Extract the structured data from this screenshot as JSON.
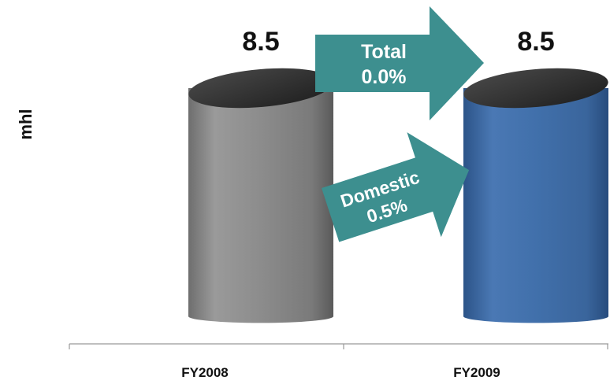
{
  "chart_data": {
    "type": "bar",
    "title": "",
    "xlabel": "",
    "ylabel": "mhl",
    "categories": [
      "FY2008",
      "FY2009"
    ],
    "values": [
      8.5,
      8.5
    ],
    "value_labels": [
      "8.5",
      "8.5"
    ],
    "ylim": [
      0,
      8.5
    ],
    "bar_colors": [
      "#8a8a8a",
      "#3f6ea8"
    ],
    "grid": false,
    "annotations": [
      {
        "line1": "Total",
        "line2": "0.0%",
        "color": "#3d8f8f"
      },
      {
        "line1": "Domestic",
        "line2": "0.5%",
        "color": "#3d8f8f"
      }
    ]
  }
}
